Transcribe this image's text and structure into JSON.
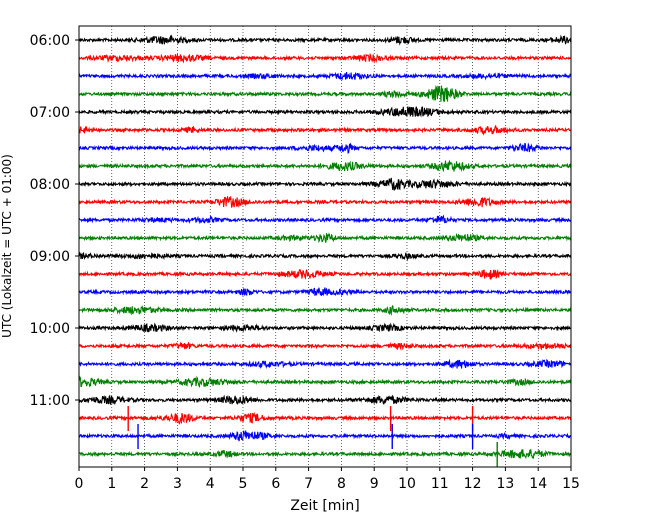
{
  "chart_data": {
    "type": "line",
    "xlabel": "Zeit  [min]",
    "ylabel": "UTC (Lokalzeit = UTC + 01:00)",
    "xlim": [
      0,
      15
    ],
    "x_ticks": [
      "0",
      "1",
      "2",
      "3",
      "4",
      "5",
      "6",
      "7",
      "8",
      "9",
      "10",
      "11",
      "12",
      "13",
      "14",
      "15"
    ],
    "y_ticks": [
      "06:00",
      "07:00",
      "08:00",
      "09:00",
      "10:00",
      "11:00"
    ],
    "grid": "vertical dotted",
    "traces_per_hour": 4,
    "trace_colors": [
      "#000000",
      "#ff0000",
      "#0000ff",
      "#008000"
    ],
    "traces": [
      {
        "start": "06:00",
        "color": "#000000",
        "spikes": []
      },
      {
        "start": "06:15",
        "color": "#ff0000",
        "spikes": []
      },
      {
        "start": "06:30",
        "color": "#0000ff",
        "spikes": []
      },
      {
        "start": "06:45",
        "color": "#008000",
        "spikes": []
      },
      {
        "start": "07:00",
        "color": "#000000",
        "spikes": []
      },
      {
        "start": "07:15",
        "color": "#ff0000",
        "spikes": []
      },
      {
        "start": "07:30",
        "color": "#0000ff",
        "spikes": []
      },
      {
        "start": "07:45",
        "color": "#008000",
        "spikes": []
      },
      {
        "start": "08:00",
        "color": "#000000",
        "spikes": []
      },
      {
        "start": "08:15",
        "color": "#ff0000",
        "spikes": []
      },
      {
        "start": "08:30",
        "color": "#0000ff",
        "spikes": []
      },
      {
        "start": "08:45",
        "color": "#008000",
        "spikes": []
      },
      {
        "start": "09:00",
        "color": "#000000",
        "spikes": []
      },
      {
        "start": "09:15",
        "color": "#ff0000",
        "spikes": []
      },
      {
        "start": "09:30",
        "color": "#0000ff",
        "spikes": []
      },
      {
        "start": "09:45",
        "color": "#008000",
        "spikes": []
      },
      {
        "start": "10:00",
        "color": "#000000",
        "spikes": []
      },
      {
        "start": "10:15",
        "color": "#ff0000",
        "spikes": []
      },
      {
        "start": "10:30",
        "color": "#0000ff",
        "spikes": []
      },
      {
        "start": "10:45",
        "color": "#008000",
        "spikes": []
      },
      {
        "start": "11:00",
        "color": "#000000",
        "spikes": []
      },
      {
        "start": "11:15",
        "color": "#ff0000",
        "spikes": [
          1.5,
          9.5,
          12.0
        ]
      },
      {
        "start": "11:30",
        "color": "#0000ff",
        "spikes": [
          1.8,
          9.55,
          12.0
        ]
      },
      {
        "start": "11:45",
        "color": "#008000",
        "spikes": [
          12.75
        ]
      }
    ]
  }
}
